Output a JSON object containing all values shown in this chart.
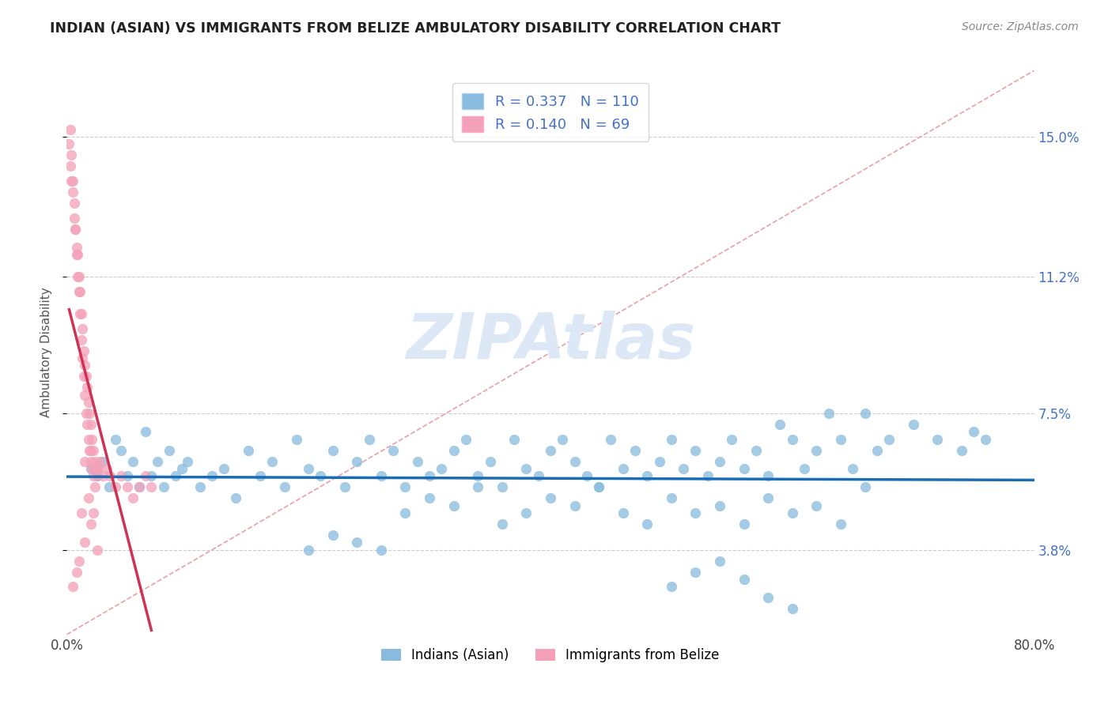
{
  "title": "INDIAN (ASIAN) VS IMMIGRANTS FROM BELIZE AMBULATORY DISABILITY CORRELATION CHART",
  "source_text": "Source: ZipAtlas.com",
  "ylabel": "Ambulatory Disability",
  "r_blue": 0.337,
  "n_blue": 110,
  "r_pink": 0.14,
  "n_pink": 69,
  "xlim": [
    0.0,
    0.8
  ],
  "ylim": [
    0.015,
    0.168
  ],
  "yticks": [
    0.038,
    0.075,
    0.112,
    0.15
  ],
  "ytick_labels": [
    "3.8%",
    "7.5%",
    "11.2%",
    "15.0%"
  ],
  "xticks": [
    0.0,
    0.1,
    0.2,
    0.3,
    0.4,
    0.5,
    0.6,
    0.7,
    0.8
  ],
  "xtick_labels": [
    "0.0%",
    "",
    "",
    "",
    "",
    "",
    "",
    "",
    "80.0%"
  ],
  "color_blue": "#88bbdd",
  "color_pink": "#f4a0b8",
  "trend_color_blue": "#1a6db5",
  "trend_color_pink": "#cc3355",
  "ref_line_color": "#ddbbbb",
  "watermark_color": "#dce8f5",
  "legend_label_blue": "Indians (Asian)",
  "legend_label_pink": "Immigrants from Belize",
  "blue_x": [
    0.02,
    0.025,
    0.03,
    0.035,
    0.04,
    0.045,
    0.05,
    0.055,
    0.06,
    0.065,
    0.07,
    0.075,
    0.08,
    0.085,
    0.09,
    0.095,
    0.1,
    0.11,
    0.12,
    0.13,
    0.14,
    0.15,
    0.16,
    0.17,
    0.18,
    0.19,
    0.2,
    0.21,
    0.22,
    0.23,
    0.24,
    0.25,
    0.26,
    0.27,
    0.28,
    0.29,
    0.3,
    0.31,
    0.32,
    0.33,
    0.34,
    0.35,
    0.36,
    0.37,
    0.38,
    0.39,
    0.4,
    0.41,
    0.42,
    0.43,
    0.44,
    0.45,
    0.46,
    0.47,
    0.48,
    0.49,
    0.5,
    0.51,
    0.52,
    0.53,
    0.54,
    0.55,
    0.56,
    0.57,
    0.58,
    0.59,
    0.6,
    0.61,
    0.62,
    0.63,
    0.64,
    0.65,
    0.66,
    0.67,
    0.68,
    0.7,
    0.72,
    0.74,
    0.75,
    0.76,
    0.28,
    0.3,
    0.32,
    0.34,
    0.36,
    0.38,
    0.4,
    0.42,
    0.44,
    0.46,
    0.48,
    0.5,
    0.52,
    0.54,
    0.56,
    0.58,
    0.6,
    0.62,
    0.64,
    0.66,
    0.2,
    0.22,
    0.24,
    0.26,
    0.5,
    0.52,
    0.54,
    0.56,
    0.58,
    0.6
  ],
  "blue_y": [
    0.06,
    0.058,
    0.062,
    0.055,
    0.068,
    0.065,
    0.058,
    0.062,
    0.055,
    0.07,
    0.058,
    0.062,
    0.055,
    0.065,
    0.058,
    0.06,
    0.062,
    0.055,
    0.058,
    0.06,
    0.052,
    0.065,
    0.058,
    0.062,
    0.055,
    0.068,
    0.06,
    0.058,
    0.065,
    0.055,
    0.062,
    0.068,
    0.058,
    0.065,
    0.055,
    0.062,
    0.058,
    0.06,
    0.065,
    0.068,
    0.058,
    0.062,
    0.055,
    0.068,
    0.06,
    0.058,
    0.065,
    0.068,
    0.062,
    0.058,
    0.055,
    0.068,
    0.06,
    0.065,
    0.058,
    0.062,
    0.068,
    0.06,
    0.065,
    0.058,
    0.062,
    0.068,
    0.06,
    0.065,
    0.058,
    0.072,
    0.068,
    0.06,
    0.065,
    0.075,
    0.068,
    0.06,
    0.075,
    0.065,
    0.068,
    0.072,
    0.068,
    0.065,
    0.07,
    0.068,
    0.048,
    0.052,
    0.05,
    0.055,
    0.045,
    0.048,
    0.052,
    0.05,
    0.055,
    0.048,
    0.045,
    0.052,
    0.048,
    0.05,
    0.045,
    0.052,
    0.048,
    0.05,
    0.045,
    0.055,
    0.038,
    0.042,
    0.04,
    0.038,
    0.028,
    0.032,
    0.035,
    0.03,
    0.025,
    0.022
  ],
  "pink_x": [
    0.002,
    0.003,
    0.004,
    0.005,
    0.006,
    0.007,
    0.008,
    0.009,
    0.01,
    0.011,
    0.012,
    0.013,
    0.014,
    0.015,
    0.016,
    0.017,
    0.018,
    0.019,
    0.02,
    0.021,
    0.022,
    0.023,
    0.024,
    0.025,
    0.003,
    0.004,
    0.005,
    0.006,
    0.007,
    0.008,
    0.009,
    0.01,
    0.011,
    0.012,
    0.013,
    0.014,
    0.015,
    0.016,
    0.017,
    0.018,
    0.019,
    0.02,
    0.021,
    0.022,
    0.023,
    0.025,
    0.027,
    0.03,
    0.033,
    0.036,
    0.04,
    0.045,
    0.05,
    0.055,
    0.06,
    0.065,
    0.07,
    0.015,
    0.02,
    0.025,
    0.012,
    0.018,
    0.022,
    0.005,
    0.008,
    0.01,
    0.015,
    0.02,
    0.025
  ],
  "pink_y": [
    0.148,
    0.142,
    0.138,
    0.135,
    0.128,
    0.125,
    0.12,
    0.118,
    0.112,
    0.108,
    0.102,
    0.098,
    0.092,
    0.088,
    0.085,
    0.082,
    0.078,
    0.075,
    0.072,
    0.068,
    0.065,
    0.062,
    0.06,
    0.058,
    0.152,
    0.145,
    0.138,
    0.132,
    0.125,
    0.118,
    0.112,
    0.108,
    0.102,
    0.095,
    0.09,
    0.085,
    0.08,
    0.075,
    0.072,
    0.068,
    0.065,
    0.062,
    0.06,
    0.058,
    0.055,
    0.06,
    0.062,
    0.058,
    0.06,
    0.058,
    0.055,
    0.058,
    0.055,
    0.052,
    0.055,
    0.058,
    0.055,
    0.062,
    0.065,
    0.06,
    0.048,
    0.052,
    0.048,
    0.028,
    0.032,
    0.035,
    0.04,
    0.045,
    0.038
  ]
}
